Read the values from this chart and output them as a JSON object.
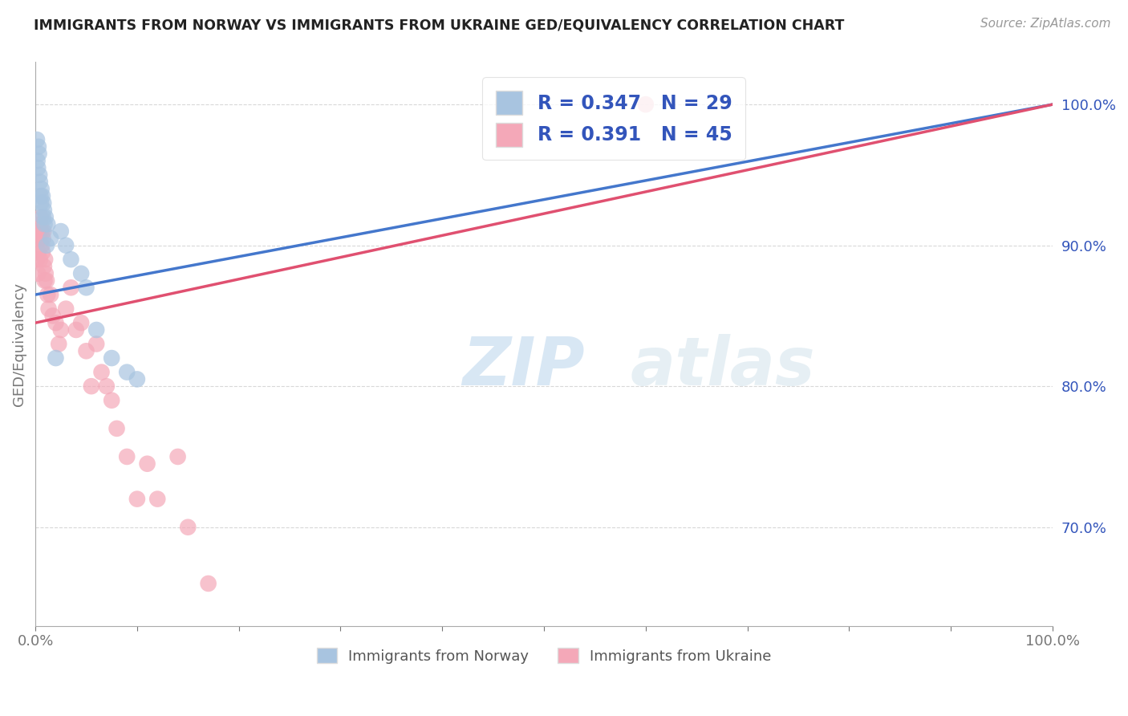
{
  "title": "IMMIGRANTS FROM NORWAY VS IMMIGRANTS FROM UKRAINE GED/EQUIVALENCY CORRELATION CHART",
  "source": "Source: ZipAtlas.com",
  "ylabel": "GED/Equivalency",
  "x_min": 0.0,
  "x_max": 100.0,
  "y_min": 63.0,
  "y_max": 103.0,
  "norway_R": 0.347,
  "norway_N": 29,
  "ukraine_R": 0.391,
  "ukraine_N": 45,
  "norway_color": "#a8c4e0",
  "ukraine_color": "#f4a8b8",
  "norway_line_color": "#4477cc",
  "ukraine_line_color": "#e05070",
  "legend_text_color": "#3355bb",
  "background_color": "#ffffff",
  "grid_color": "#c8c8c8",
  "norway_x": [
    0.15,
    0.2,
    0.25,
    0.3,
    0.35,
    0.4,
    0.45,
    0.5,
    0.55,
    0.6,
    0.7,
    0.75,
    0.8,
    0.85,
    0.9,
    1.0,
    1.1,
    1.2,
    1.5,
    2.0,
    2.5,
    3.0,
    3.5,
    4.5,
    5.0,
    6.0,
    7.5,
    9.0,
    10.0
  ],
  "norway_y": [
    97.5,
    96.0,
    95.5,
    97.0,
    96.5,
    95.0,
    94.5,
    93.5,
    93.0,
    94.0,
    93.5,
    92.0,
    93.0,
    92.5,
    91.5,
    92.0,
    90.0,
    91.5,
    90.5,
    82.0,
    91.0,
    90.0,
    89.0,
    88.0,
    87.0,
    84.0,
    82.0,
    81.0,
    80.5
  ],
  "ukraine_x": [
    0.15,
    0.2,
    0.25,
    0.3,
    0.35,
    0.4,
    0.45,
    0.5,
    0.55,
    0.6,
    0.65,
    0.7,
    0.75,
    0.8,
    0.85,
    0.9,
    0.95,
    1.0,
    1.1,
    1.2,
    1.3,
    1.5,
    1.7,
    2.0,
    2.3,
    2.5,
    3.0,
    3.5,
    4.0,
    4.5,
    5.0,
    5.5,
    6.0,
    6.5,
    7.0,
    7.5,
    8.0,
    9.0,
    10.0,
    11.0,
    12.0,
    14.0,
    15.0,
    17.0,
    60.0
  ],
  "ukraine_y": [
    89.0,
    90.5,
    88.0,
    89.5,
    91.0,
    90.5,
    89.0,
    91.5,
    92.0,
    91.0,
    90.0,
    89.5,
    90.5,
    91.0,
    88.5,
    87.5,
    89.0,
    88.0,
    87.5,
    86.5,
    85.5,
    86.5,
    85.0,
    84.5,
    83.0,
    84.0,
    85.5,
    87.0,
    84.0,
    84.5,
    82.5,
    80.0,
    83.0,
    81.0,
    80.0,
    79.0,
    77.0,
    75.0,
    72.0,
    74.5,
    72.0,
    75.0,
    70.0,
    66.0,
    100.0
  ],
  "norway_trendline_x": [
    0.0,
    100.0
  ],
  "norway_trendline_y": [
    86.5,
    100.0
  ],
  "ukraine_trendline_x": [
    0.0,
    100.0
  ],
  "ukraine_trendline_y": [
    84.5,
    100.0
  ],
  "watermark_zip": "ZIP",
  "watermark_atlas": "atlas",
  "watermark_color": "#c8dff0"
}
